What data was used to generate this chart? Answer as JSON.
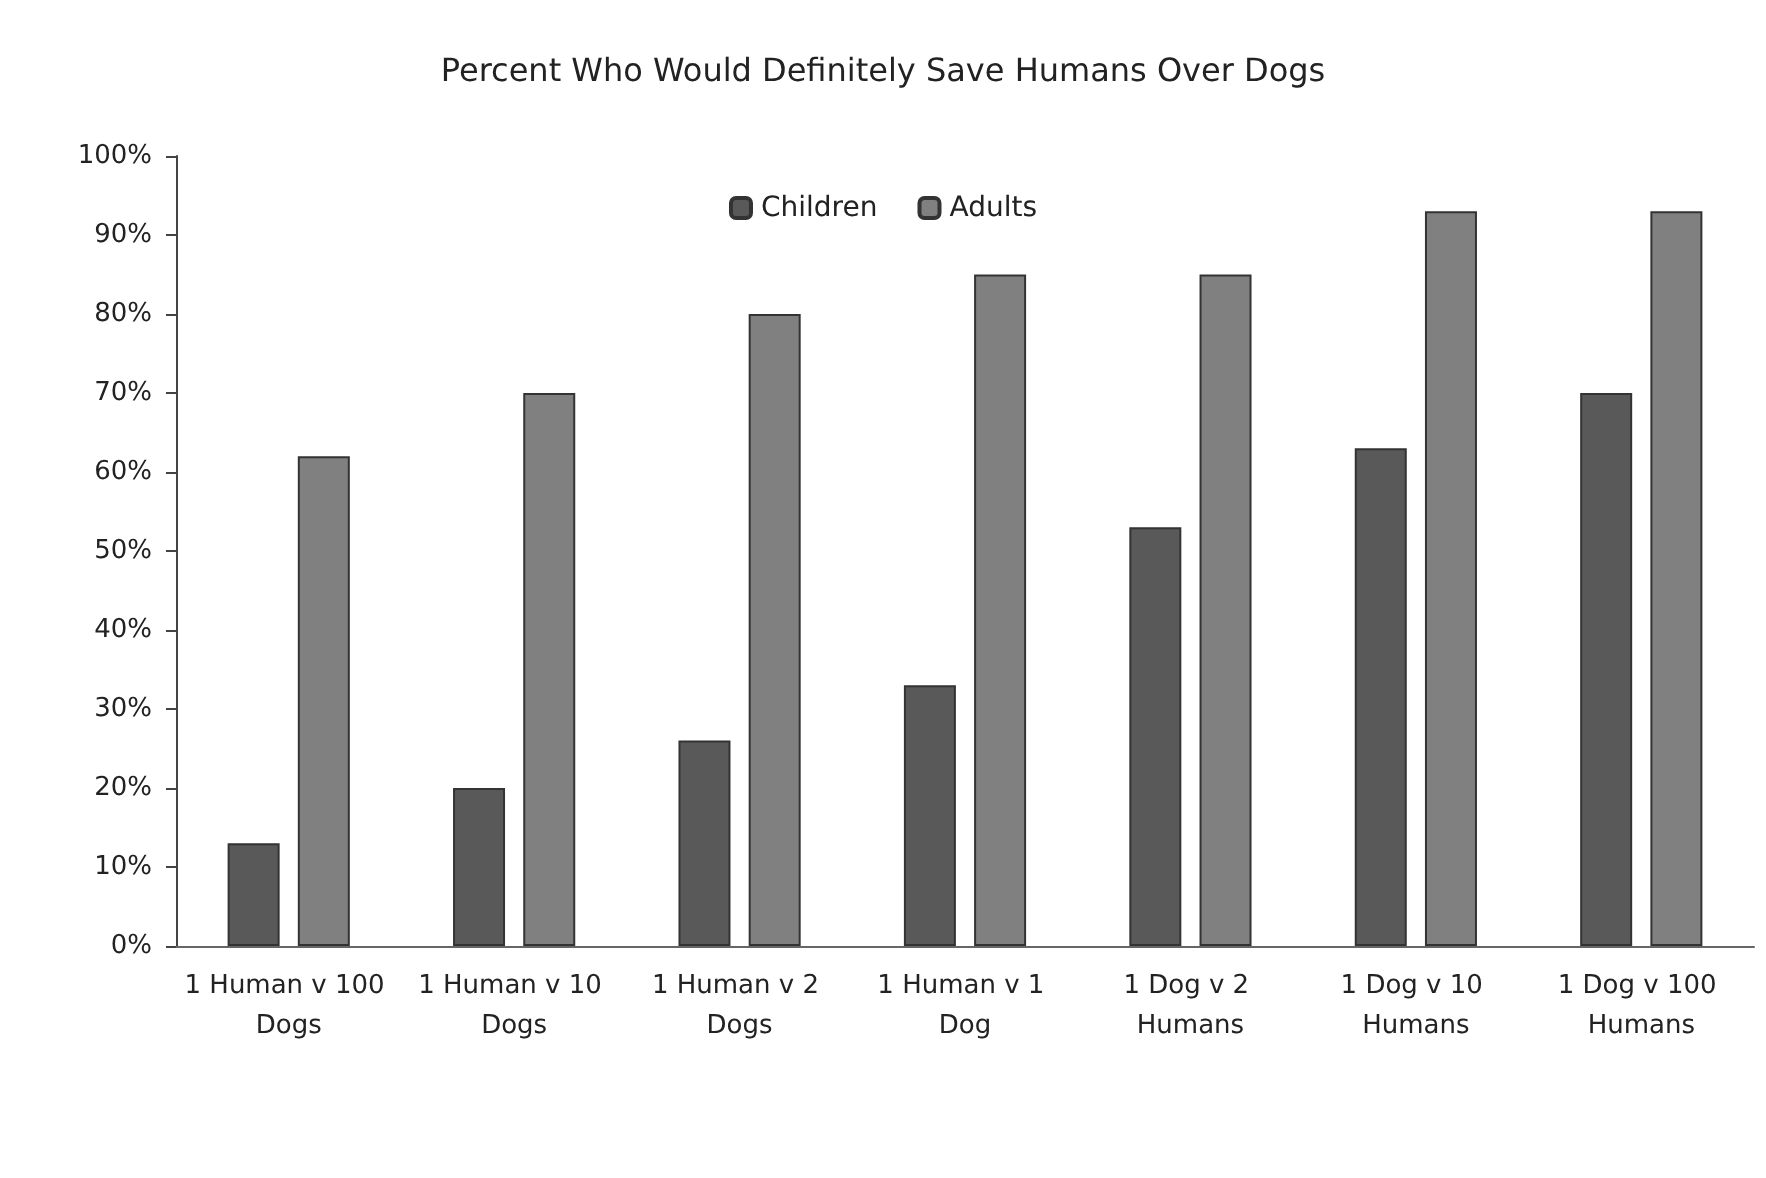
{
  "chart_data": {
    "type": "bar",
    "title": "Percent Who Would Definitely Save Humans Over Dogs",
    "categories": [
      "1 Human v 100 Dogs",
      "1 Human v 10 Dogs",
      "1 Human v 2 Dogs",
      "1 Human v 1 Dog",
      "1 Dog v 2 Humans",
      "1 Dog v 10 Humans",
      "1 Dog v 100 Humans"
    ],
    "series": [
      {
        "name": "Children",
        "color": "#595959",
        "values": [
          13,
          20,
          26,
          33,
          53,
          63,
          70
        ]
      },
      {
        "name": "Adults",
        "color": "#808080",
        "values": [
          62,
          70,
          80,
          85,
          85,
          93,
          93
        ]
      }
    ],
    "ylim": [
      0,
      100
    ],
    "yticks": [
      {
        "value": 0,
        "label": "0%"
      },
      {
        "value": 10,
        "label": "10%"
      },
      {
        "value": 20,
        "label": "20%"
      },
      {
        "value": 30,
        "label": "30%"
      },
      {
        "value": 40,
        "label": "40%"
      },
      {
        "value": 50,
        "label": "50%"
      },
      {
        "value": 60,
        "label": "60%"
      },
      {
        "value": 70,
        "label": "70%"
      },
      {
        "value": 80,
        "label": "80%"
      },
      {
        "value": 90,
        "label": "90%"
      },
      {
        "value": 100,
        "label": "100%"
      }
    ],
    "grid": false,
    "legend": "top"
  }
}
